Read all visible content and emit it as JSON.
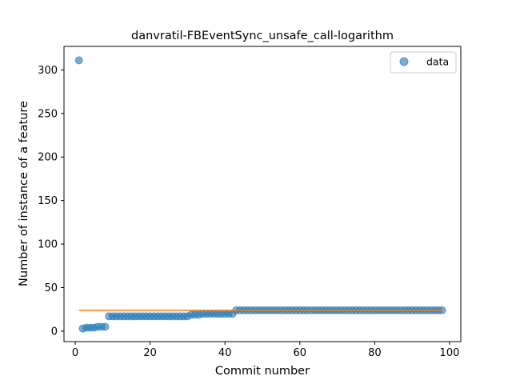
{
  "chart_data": {
    "type": "scatter",
    "title": "danvratil-FBEventSync_unsafe_call-logarithm",
    "xlabel": "Commit number",
    "ylabel": "Number of instance of a feature",
    "xlim": [
      -3,
      103
    ],
    "ylim": [
      -12,
      327
    ],
    "xticks": [
      0,
      20,
      40,
      60,
      80,
      100
    ],
    "yticks": [
      0,
      50,
      100,
      150,
      200,
      250,
      300
    ],
    "legend": {
      "position": "top-right",
      "entries": [
        "data"
      ]
    },
    "grid": false,
    "colors": {
      "points": "#1f77b4",
      "fit_line": "#ff7f0e"
    },
    "series": [
      {
        "name": "data",
        "kind": "scatter",
        "x": [
          1,
          2,
          3,
          4,
          5,
          6,
          7,
          8,
          9,
          10,
          11,
          12,
          13,
          14,
          15,
          16,
          17,
          18,
          19,
          20,
          21,
          22,
          23,
          24,
          25,
          26,
          27,
          28,
          29,
          30,
          31,
          32,
          33,
          34,
          35,
          36,
          37,
          38,
          39,
          40,
          41,
          42,
          43,
          44,
          45,
          46,
          47,
          48,
          49,
          50,
          51,
          52,
          53,
          54,
          55,
          56,
          57,
          58,
          59,
          60,
          61,
          62,
          63,
          64,
          65,
          66,
          67,
          68,
          69,
          70,
          71,
          72,
          73,
          74,
          75,
          76,
          77,
          78,
          79,
          80,
          81,
          82,
          83,
          84,
          85,
          86,
          87,
          88,
          89,
          90,
          91,
          92,
          93,
          94,
          95,
          96,
          97,
          98
        ],
        "y": [
          311,
          3,
          4,
          4,
          4,
          5,
          5,
          5,
          17,
          17,
          17,
          17,
          17,
          17,
          17,
          17,
          17,
          17,
          17,
          17,
          17,
          17,
          17,
          17,
          17,
          17,
          17,
          17,
          17,
          17,
          19,
          19,
          19,
          20,
          20,
          20,
          20,
          20,
          20,
          20,
          20,
          20,
          24,
          24,
          24,
          24,
          24,
          24,
          24,
          24,
          24,
          24,
          24,
          24,
          24,
          24,
          24,
          24,
          24,
          24,
          24,
          24,
          24,
          24,
          24,
          24,
          24,
          24,
          24,
          24,
          24,
          24,
          24,
          24,
          24,
          24,
          24,
          24,
          24,
          24,
          24,
          24,
          24,
          24,
          24,
          24,
          24,
          24,
          24,
          24,
          24,
          24,
          24,
          24,
          24,
          24,
          24,
          24
        ]
      },
      {
        "kind": "line",
        "x": [
          1,
          98
        ],
        "y": [
          24,
          24
        ]
      }
    ]
  }
}
